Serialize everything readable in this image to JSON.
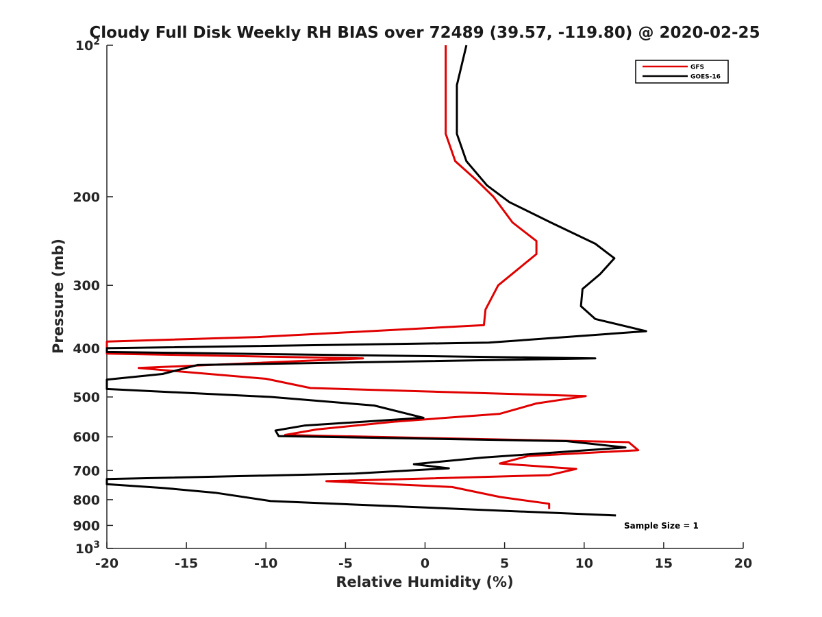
{
  "chart_data": {
    "type": "line",
    "title": "Cloudy Full Disk Weekly RH BIAS over 72489 (39.57, -119.80) @ 2020-02-25",
    "xlabel": "Relative Humidity (%)",
    "ylabel": "Pressure (mb)",
    "xlim": [
      -20,
      20
    ],
    "ylim": [
      1000,
      100
    ],
    "yscale": "log",
    "y_reversed": true,
    "grid": false,
    "legend_position": "top-right",
    "x_ticks": [
      -20,
      -15,
      -10,
      -5,
      0,
      5,
      10,
      15,
      20
    ],
    "y_ticks": [
      {
        "value": 100,
        "base": "10",
        "exp": "2"
      },
      {
        "value": 200,
        "label": "200"
      },
      {
        "value": 300,
        "label": "300"
      },
      {
        "value": 400,
        "label": "400"
      },
      {
        "value": 500,
        "label": "500"
      },
      {
        "value": 600,
        "label": "600"
      },
      {
        "value": 700,
        "label": "700"
      },
      {
        "value": 800,
        "label": "800"
      },
      {
        "value": 900,
        "label": "900"
      },
      {
        "value": 1000,
        "base": "10",
        "exp": "3"
      }
    ],
    "annotation": "Sample Size = 1",
    "series": [
      {
        "name": "GFS",
        "color": "#e00000",
        "points": [
          [
            1.3,
            100
          ],
          [
            1.3,
            150
          ],
          [
            1.9,
            170
          ],
          [
            3.2,
            185
          ],
          [
            4.3,
            200
          ],
          [
            5.5,
            225
          ],
          [
            7.0,
            245
          ],
          [
            7.0,
            260
          ],
          [
            4.6,
            300
          ],
          [
            3.8,
            335
          ],
          [
            3.7,
            360
          ],
          [
            -10.5,
            380
          ],
          [
            -20,
            388
          ],
          [
            -20,
            400
          ],
          [
            -20,
            410
          ],
          [
            -3.9,
            419
          ],
          [
            -18,
            438
          ],
          [
            -10,
            460
          ],
          [
            -7.2,
            480
          ],
          [
            10.1,
            498
          ],
          [
            7.0,
            515
          ],
          [
            4.7,
            540
          ],
          [
            -2.0,
            560
          ],
          [
            -6.8,
            580
          ],
          [
            -8.8,
            595
          ],
          [
            12.8,
            615
          ],
          [
            13.4,
            638
          ],
          [
            6.5,
            655
          ],
          [
            4.7,
            678
          ],
          [
            9.5,
            695
          ],
          [
            7.8,
            715
          ],
          [
            -6.2,
            735
          ],
          [
            1.7,
            755
          ],
          [
            4.7,
            790
          ],
          [
            7.8,
            815
          ],
          [
            7.8,
            835
          ]
        ]
      },
      {
        "name": "GOES-16",
        "color": "#000000",
        "points": [
          [
            2.6,
            100
          ],
          [
            2.0,
            120
          ],
          [
            2.0,
            150
          ],
          [
            2.6,
            170
          ],
          [
            3.9,
            190
          ],
          [
            5.3,
            205
          ],
          [
            7.9,
            225
          ],
          [
            10.7,
            248
          ],
          [
            11.9,
            265
          ],
          [
            11.0,
            285
          ],
          [
            9.9,
            305
          ],
          [
            9.8,
            330
          ],
          [
            10.7,
            350
          ],
          [
            13.9,
            370
          ],
          [
            4.0,
            390
          ],
          [
            -20,
            400
          ],
          [
            -20,
            407
          ],
          [
            10.7,
            419
          ],
          [
            -14.3,
            432
          ],
          [
            -16.5,
            450
          ],
          [
            -20,
            462
          ],
          [
            -20,
            482
          ],
          [
            -9.7,
            500
          ],
          [
            -3.2,
            520
          ],
          [
            -0.1,
            550
          ],
          [
            -7.6,
            570
          ],
          [
            -9.4,
            583
          ],
          [
            -9.2,
            598
          ],
          [
            8.9,
            612
          ],
          [
            12.6,
            630
          ],
          [
            3.6,
            660
          ],
          [
            -0.7,
            680
          ],
          [
            1.5,
            693
          ],
          [
            -4.4,
            710
          ],
          [
            -20,
            728
          ],
          [
            -20,
            745
          ],
          [
            -16.5,
            758
          ],
          [
            -13.2,
            775
          ],
          [
            -9.7,
            805
          ],
          [
            12.0,
            860
          ]
        ]
      }
    ]
  }
}
